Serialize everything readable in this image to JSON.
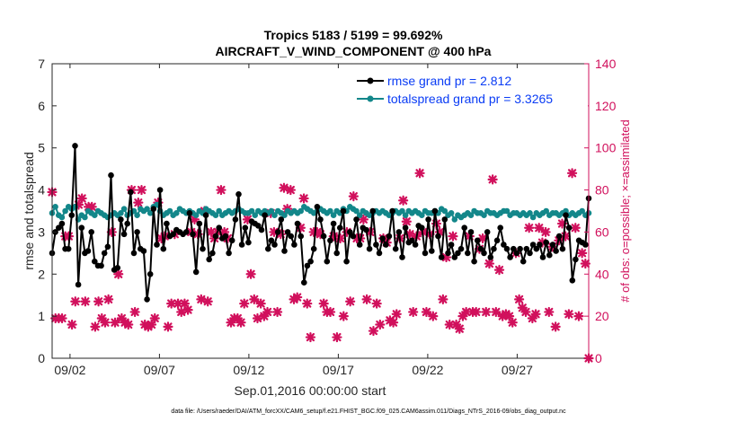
{
  "chart_data": {
    "type": "line",
    "title_line1": "Tropics 5183 / 5199 = 99.692%",
    "title_line2": "AIRCRAFT_V_WIND_COMPONENT @ 400 hPa",
    "xlabel": "Sep.01,2016 00:00:00 start",
    "ylabel": "rmse and totalspread",
    "ylabel_right": "# of obs: o=possible; ×=assimilated",
    "footnote": "data file: /Users/raeder/DAI/ATM_forcXX/CAM6_setup/f.e21.FHIST_BGC.f09_025.CAM6assim.011/Diags_NTrS_2016-09/obs_diag_output.nc",
    "x_range_days": [
      0,
      30
    ],
    "ylim": [
      0,
      7
    ],
    "ylim_right": [
      0,
      140
    ],
    "x_ticks": [
      {
        "day": 1,
        "label": "09/02"
      },
      {
        "day": 6,
        "label": "09/07"
      },
      {
        "day": 11,
        "label": "09/12"
      },
      {
        "day": 16,
        "label": "09/17"
      },
      {
        "day": 21,
        "label": "09/22"
      },
      {
        "day": 26,
        "label": "09/27"
      }
    ],
    "y_ticks": [
      "0",
      "1",
      "2",
      "3",
      "4",
      "5",
      "6",
      "7"
    ],
    "y_ticks_right": [
      "0",
      "20",
      "40",
      "60",
      "80",
      "100",
      "120",
      "140"
    ],
    "colors": {
      "rmse": "#000000",
      "spread": "#13878a",
      "obs": "#d1105c",
      "legend_text": "#0a3cf5"
    },
    "series": [
      {
        "name": "rmse grand pr = 2.812",
        "key": "rmse",
        "values": [
          2.5,
          3.0,
          3.1,
          3.2,
          2.6,
          2.6,
          3.4,
          5.05,
          1.75,
          3.1,
          2.5,
          2.55,
          3.0,
          2.3,
          2.2,
          2.2,
          2.5,
          2.65,
          4.35,
          2.1,
          2.15,
          3.3,
          2.95,
          3.2,
          3.95,
          2.5,
          3.0,
          2.6,
          2.55,
          1.4,
          2.0,
          3.55,
          2.7,
          4.0,
          2.6,
          3.2,
          2.9,
          2.95,
          3.05,
          3.0,
          2.95,
          3.0,
          3.45,
          2.95,
          2.05,
          3.2,
          2.6,
          3.4,
          2.35,
          2.5,
          2.9,
          3.1,
          2.85,
          2.9,
          2.5,
          2.8,
          3.3,
          3.9,
          2.7,
          3.1,
          2.75,
          3.25,
          3.2,
          3.15,
          3.05,
          3.4,
          2.6,
          2.8,
          2.7,
          3.0,
          3.3,
          2.55,
          3.0,
          2.9,
          2.7,
          3.2,
          2.9,
          1.8,
          2.2,
          2.3,
          2.6,
          3.6,
          3.3,
          2.9,
          2.3,
          2.8,
          3.2,
          2.5,
          3.1,
          3.5,
          2.3,
          3.0,
          2.9,
          3.3,
          2.7,
          3.1,
          3.05,
          2.6,
          3.5,
          2.7,
          2.5,
          2.85,
          2.7,
          2.9,
          3.5,
          2.6,
          3.0,
          2.4,
          3.1,
          2.75,
          2.8,
          2.7,
          3.15,
          3.1,
          2.5,
          3.3,
          2.55,
          3.5,
          2.9,
          2.4,
          3.3,
          2.5,
          2.7,
          2.4,
          2.5,
          2.6,
          3.1,
          2.5,
          3.0,
          2.3,
          2.8,
          2.6,
          2.5,
          3.0,
          2.4,
          2.6,
          2.8,
          3.1,
          2.7,
          2.6,
          2.4,
          2.6,
          2.5,
          2.6,
          2.3,
          2.6,
          2.5,
          2.7,
          2.6,
          2.7,
          2.4,
          2.75,
          2.45,
          2.7,
          2.55,
          2.9,
          2.6,
          3.4,
          3.1,
          1.85,
          2.35,
          2.8,
          2.75,
          2.7,
          3.8
        ]
      },
      {
        "name": "totalspread grand pr = 3.3265",
        "key": "spread",
        "values": [
          3.45,
          3.6,
          3.4,
          3.35,
          3.5,
          3.6,
          3.55,
          3.6,
          3.3,
          3.4,
          3.35,
          3.5,
          3.45,
          3.4,
          3.5,
          3.45,
          3.4,
          3.35,
          3.4,
          3.45,
          3.4,
          3.45,
          3.55,
          3.4,
          3.45,
          3.5,
          3.4,
          3.55,
          3.5,
          3.55,
          3.45,
          3.6,
          3.65,
          3.5,
          3.4,
          3.45,
          3.5,
          3.4,
          3.45,
          3.55,
          3.5,
          3.45,
          3.5,
          3.45,
          3.4,
          3.5,
          3.45,
          3.55,
          3.5,
          3.45,
          3.4,
          3.5,
          3.4,
          3.45,
          3.5,
          3.45,
          3.5,
          3.55,
          3.5,
          3.45,
          3.45,
          3.5,
          3.4,
          3.5,
          3.45,
          3.5,
          3.45,
          3.5,
          3.4,
          3.5,
          3.45,
          3.4,
          3.5,
          3.45,
          3.5,
          3.45,
          3.5,
          3.6,
          3.55,
          3.5,
          3.45,
          3.5,
          3.55,
          3.5,
          3.45,
          3.5,
          3.4,
          3.5,
          3.45,
          3.55,
          3.5,
          3.6,
          3.55,
          3.5,
          3.4,
          3.5,
          3.45,
          3.4,
          3.45,
          3.5,
          3.45,
          3.5,
          3.45,
          3.4,
          3.45,
          3.5,
          3.45,
          3.5,
          3.4,
          3.5,
          3.45,
          3.5,
          3.45,
          3.4,
          3.5,
          3.45,
          3.45,
          3.5,
          3.45,
          3.55,
          3.5,
          3.4,
          3.45,
          3.3,
          3.4,
          3.35,
          3.4,
          3.45,
          3.4,
          3.5,
          3.45,
          3.45,
          3.4,
          3.5,
          3.45,
          3.45,
          3.4,
          3.45,
          3.5,
          3.5,
          3.4,
          3.45,
          3.45,
          3.4,
          3.45,
          3.4,
          3.45,
          3.35,
          3.45,
          3.4,
          3.45,
          3.5,
          3.4,
          3.45,
          3.45,
          3.4,
          3.45,
          3.5,
          3.4,
          3.45,
          3.4,
          3.45,
          3.5,
          3.4,
          3.45
        ]
      }
    ],
    "obs_counts": [
      79,
      19,
      19,
      19,
      58,
      58,
      16,
      27,
      73,
      76,
      27,
      72,
      72,
      15,
      27,
      19,
      17,
      28,
      60,
      17,
      40,
      19,
      17,
      16,
      80,
      22,
      74,
      80,
      16,
      15,
      16,
      19,
      74,
      57,
      58,
      15,
      26,
      59,
      26,
      22,
      26,
      23,
      60,
      66,
      59,
      28,
      70,
      27,
      60,
      57,
      60,
      80,
      60,
      57,
      17,
      19,
      19,
      17,
      26,
      66,
      40,
      28,
      19,
      26,
      20,
      22,
      69,
      60,
      22,
      59,
      81,
      71,
      80,
      28,
      29,
      62,
      76,
      26,
      10,
      60,
      60,
      59,
      26,
      22,
      22,
      58,
      10,
      57,
      20,
      60,
      27,
      77,
      57,
      57,
      66,
      28,
      60,
      13,
      26,
      16,
      57,
      55,
      18,
      17,
      21,
      57,
      75,
      65,
      59,
      22,
      58,
      88,
      60,
      22,
      59,
      20,
      64,
      60,
      28,
      48,
      16,
      58,
      16,
      14,
      20,
      22,
      58,
      22,
      22,
      52,
      57,
      22,
      45,
      85,
      22,
      42,
      20,
      21,
      20,
      17,
      50,
      28,
      24,
      22,
      62,
      19,
      21,
      62,
      55,
      60,
      22,
      53,
      15,
      56,
      64,
      58,
      21,
      88,
      62,
      20,
      50,
      45,
      0
    ]
  }
}
